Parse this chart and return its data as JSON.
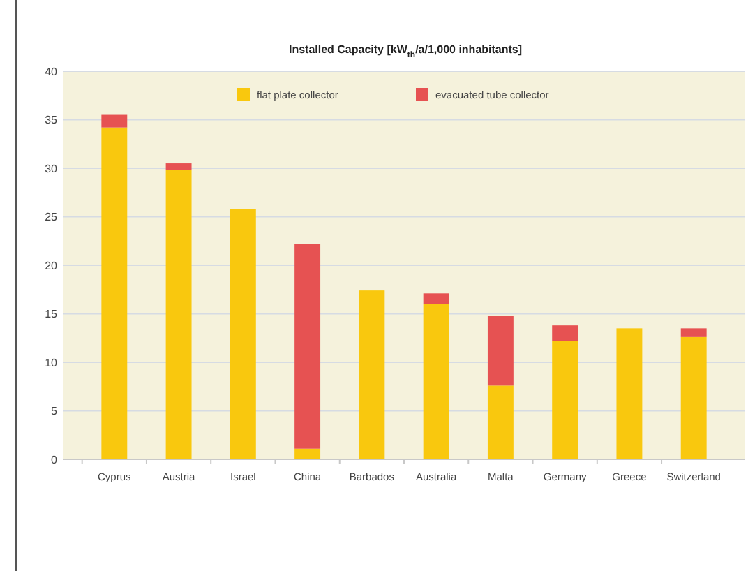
{
  "chart_data": {
    "type": "bar",
    "title": "Installed Capacity  [kW$_{th}$/a/1,000 inhabitants]",
    "categories": [
      "Cyprus",
      "Austria",
      "Israel",
      "China",
      "Barbados",
      "Australia",
      "Malta",
      "Germany",
      "Greece",
      "Switzerland"
    ],
    "stacked": true,
    "series": [
      {
        "name": "flat plate collector",
        "color": "#f9c80e",
        "values": [
          34.2,
          29.8,
          25.8,
          1.1,
          17.4,
          16.0,
          7.6,
          12.2,
          13.5,
          12.6
        ]
      },
      {
        "name": "evacuated tube collector",
        "color": "#e65252",
        "values": [
          1.3,
          0.7,
          0,
          21.1,
          0,
          1.1,
          7.2,
          1.6,
          0,
          0.9
        ]
      }
    ],
    "ylim": [
      0,
      40
    ],
    "yticks": [
      0,
      5,
      10,
      15,
      20,
      25,
      30,
      35,
      40
    ],
    "grid": "y",
    "legend": "top"
  }
}
